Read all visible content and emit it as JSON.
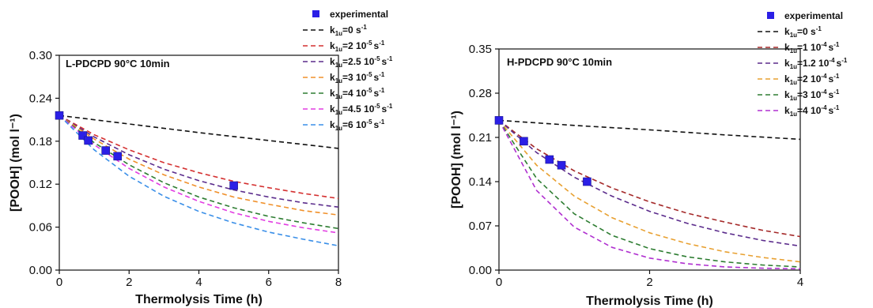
{
  "chart_data": [
    {
      "type": "line",
      "title": "L-PDCPD 90°C 10min",
      "xlabel": "Thermolysis Time (h)",
      "ylabel": "[POOH] (mol l⁻¹)",
      "xlim": [
        0,
        8
      ],
      "ylim": [
        0,
        0.3
      ],
      "xticks": [
        "0",
        "2",
        "4",
        "6",
        "8"
      ],
      "yticks": [
        "0.00",
        "0.06",
        "0.12",
        "0.18",
        "0.24",
        "0.30"
      ],
      "grid": false,
      "legend_position": "top-right",
      "experimental": {
        "name": "experimental",
        "color": "#2b1fe6",
        "x": [
          0,
          0.67,
          0.83,
          1.33,
          1.67,
          5.0
        ],
        "y": [
          0.216,
          0.188,
          0.181,
          0.167,
          0.159,
          0.118
        ]
      },
      "series": [
        {
          "legend_main": "k",
          "legend_sub": "1u",
          "legend_value": "=0 s",
          "legend_exp": "-1",
          "color": "#111111",
          "x": [
            0,
            2,
            4,
            6,
            8
          ],
          "y": [
            0.216,
            0.204,
            0.192,
            0.181,
            0.17
          ]
        },
        {
          "legend_main": "k",
          "legend_sub": "1u",
          "legend_value": "=2 10",
          "legend_exp": "-5",
          "legend_unit": "s",
          "legend_unit_exp": "-1",
          "color": "#d43030",
          "x": [
            0,
            1,
            2,
            3,
            4,
            5,
            6,
            7,
            8
          ],
          "y": [
            0.216,
            0.189,
            0.168,
            0.15,
            0.136,
            0.124,
            0.115,
            0.107,
            0.1
          ]
        },
        {
          "legend_main": "k",
          "legend_sub": "1u",
          "legend_value": "=2.5 10",
          "legend_exp": "-5",
          "legend_unit": "s",
          "legend_unit_exp": "-1",
          "color": "#5b2c8c",
          "x": [
            0,
            1,
            2,
            3,
            4,
            5,
            6,
            7,
            8
          ],
          "y": [
            0.216,
            0.186,
            0.161,
            0.141,
            0.125,
            0.112,
            0.102,
            0.094,
            0.088
          ]
        },
        {
          "legend_main": "k",
          "legend_sub": "1u",
          "legend_value": "=3 10",
          "legend_exp": "-5",
          "legend_unit": "s",
          "legend_unit_exp": "-1",
          "color": "#f0902a",
          "x": [
            0,
            1,
            2,
            3,
            4,
            5,
            6,
            7,
            8
          ],
          "y": [
            0.216,
            0.183,
            0.155,
            0.133,
            0.116,
            0.102,
            0.092,
            0.083,
            0.077
          ]
        },
        {
          "legend_main": "k",
          "legend_sub": "1u",
          "legend_value": "=4 10",
          "legend_exp": "-5",
          "legend_unit": "s",
          "legend_unit_exp": "-1",
          "color": "#2e7d32",
          "x": [
            0,
            1,
            2,
            3,
            4,
            5,
            6,
            7,
            8
          ],
          "y": [
            0.216,
            0.178,
            0.147,
            0.122,
            0.102,
            0.087,
            0.075,
            0.066,
            0.058
          ]
        },
        {
          "legend_main": "k",
          "legend_sub": "1u",
          "legend_value": "=4.5 10",
          "legend_exp": "-5",
          "legend_unit": "s",
          "legend_unit_exp": "-1",
          "color": "#e23de2",
          "x": [
            0,
            1,
            2,
            3,
            4,
            5,
            6,
            7,
            8
          ],
          "y": [
            0.216,
            0.175,
            0.142,
            0.116,
            0.096,
            0.08,
            0.068,
            0.059,
            0.052
          ]
        },
        {
          "legend_main": "k",
          "legend_sub": "1u",
          "legend_value": "=6 10",
          "legend_exp": "-5",
          "legend_unit": "s",
          "legend_unit_exp": "-1",
          "color": "#3a8fe8",
          "x": [
            0,
            1,
            2,
            3,
            4,
            5,
            6,
            7,
            8
          ],
          "y": [
            0.216,
            0.168,
            0.131,
            0.103,
            0.082,
            0.066,
            0.053,
            0.043,
            0.034
          ]
        }
      ]
    },
    {
      "type": "line",
      "title": "H-PDCPD 90°C 10min",
      "xlabel": "Thermolysis Time (h)",
      "ylabel": "[POOH] (mol l⁻¹)",
      "xlim": [
        0,
        4
      ],
      "ylim": [
        0,
        0.35
      ],
      "xticks": [
        "0",
        "2",
        "4"
      ],
      "yticks": [
        "0.00",
        "0.07",
        "0.14",
        "0.21",
        "0.28",
        "0.35"
      ],
      "grid": false,
      "legend_position": "top-right",
      "experimental": {
        "name": "experimental",
        "color": "#2b1fe6",
        "x": [
          0,
          0.33,
          0.67,
          0.83,
          1.17
        ],
        "y": [
          0.237,
          0.204,
          0.175,
          0.166,
          0.14
        ]
      },
      "series": [
        {
          "legend_main": "k",
          "legend_sub": "1u",
          "legend_value": "=0 s",
          "legend_exp": "-1",
          "color": "#111111",
          "x": [
            0,
            1,
            2,
            3,
            4
          ],
          "y": [
            0.237,
            0.229,
            0.222,
            0.214,
            0.207
          ]
        },
        {
          "legend_main": "k",
          "legend_sub": "1u",
          "legend_value": "=1 10",
          "legend_exp": "-4",
          "legend_unit": "s",
          "legend_unit_exp": "-1",
          "color": "#a52a2a",
          "x": [
            0,
            0.5,
            1,
            1.5,
            2,
            2.5,
            3,
            3.5,
            4
          ],
          "y": [
            0.237,
            0.192,
            0.157,
            0.13,
            0.108,
            0.09,
            0.076,
            0.063,
            0.053
          ]
        },
        {
          "legend_main": "k",
          "legend_sub": "1u",
          "legend_value": "=1.2 10",
          "legend_exp": "-4",
          "legend_unit": "s",
          "legend_unit_exp": "-1",
          "color": "#5b2c8c",
          "x": [
            0,
            0.5,
            1,
            1.5,
            2,
            2.5,
            3,
            3.5,
            4
          ],
          "y": [
            0.237,
            0.186,
            0.147,
            0.117,
            0.093,
            0.074,
            0.059,
            0.047,
            0.038
          ]
        },
        {
          "legend_main": "k",
          "legend_sub": "1u",
          "legend_value": "=2 10",
          "legend_exp": "-4",
          "legend_unit": "s",
          "legend_unit_exp": "-1",
          "color": "#e8a030",
          "x": [
            0,
            0.5,
            1,
            1.5,
            2,
            2.5,
            3,
            3.5,
            4
          ],
          "y": [
            0.237,
            0.166,
            0.117,
            0.083,
            0.059,
            0.042,
            0.029,
            0.02,
            0.013
          ]
        },
        {
          "legend_main": "k",
          "legend_sub": "1u",
          "legend_value": "=3 10",
          "legend_exp": "-4",
          "legend_unit": "s",
          "legend_unit_exp": "-1",
          "color": "#2e7d32",
          "x": [
            0,
            0.5,
            1,
            1.5,
            2,
            2.5,
            3,
            3.5,
            4
          ],
          "y": [
            0.237,
            0.145,
            0.089,
            0.055,
            0.034,
            0.021,
            0.013,
            0.008,
            0.005
          ]
        },
        {
          "legend_main": "k",
          "legend_sub": "1u",
          "legend_value": "=4 10",
          "legend_exp": "-4",
          "legend_unit": "s",
          "legend_unit_exp": "-1",
          "color": "#b030d0",
          "x": [
            0,
            0.5,
            1,
            1.5,
            2,
            2.5,
            3,
            3.5,
            4
          ],
          "y": [
            0.237,
            0.126,
            0.068,
            0.036,
            0.019,
            0.01,
            0.005,
            0.003,
            0.002
          ]
        }
      ]
    }
  ]
}
